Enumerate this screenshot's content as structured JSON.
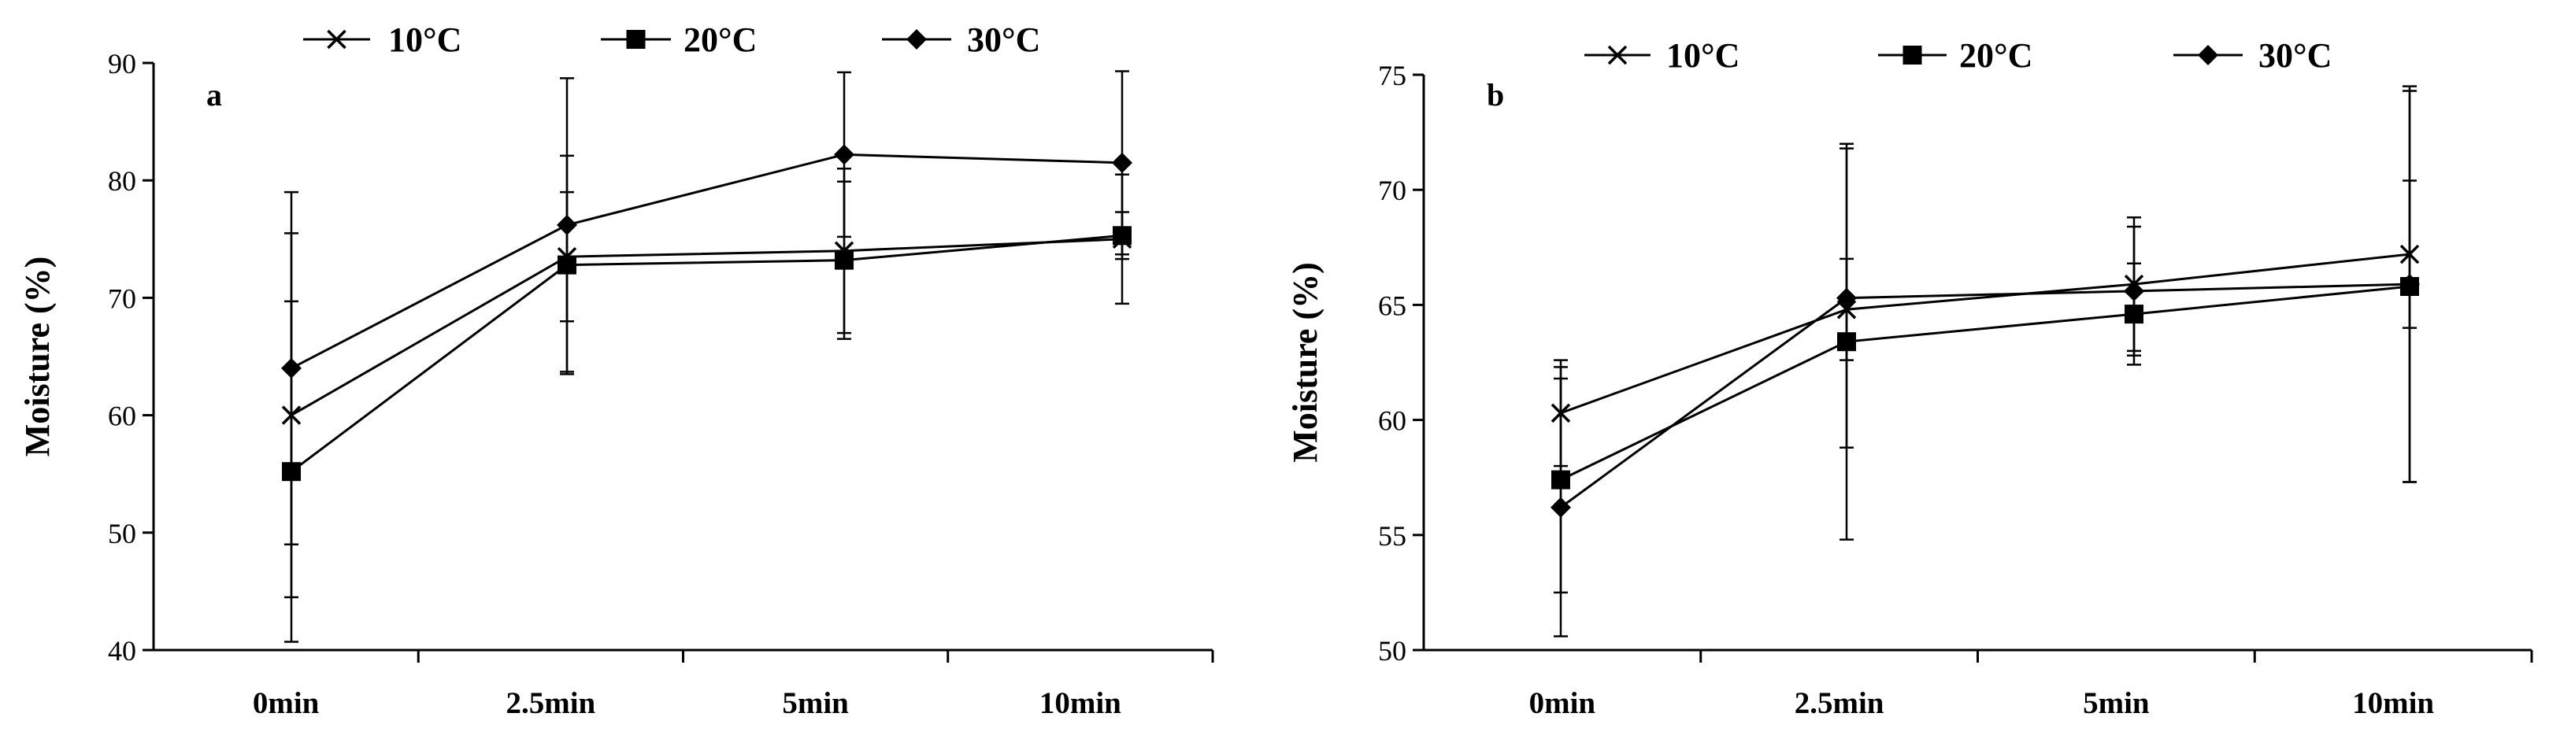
{
  "chart_data": [
    {
      "type": "line",
      "panel_label": "a",
      "ylabel": "Moisture (%)",
      "xlabel": "",
      "ylim": [
        40,
        90
      ],
      "yticks": [
        "40",
        "50",
        "60",
        "70",
        "80",
        "90"
      ],
      "categories": [
        "0min",
        "2.5min",
        "5min",
        "10min"
      ],
      "legend": [
        "10°C",
        "20°C",
        "30°C"
      ],
      "series": [
        {
          "name": "10°C",
          "marker": "x",
          "values": [
            60.0,
            73.5,
            74.0,
            75.0
          ],
          "errors": [
            15.5,
            5.5,
            7.0,
            5.5
          ]
        },
        {
          "name": "20°C",
          "marker": "square",
          "values": [
            55.2,
            72.8,
            73.2,
            75.3
          ],
          "errors": [
            14.5,
            9.3,
            6.7,
            2.0
          ]
        },
        {
          "name": "30°C",
          "marker": "diamond",
          "values": [
            64.0,
            76.2,
            82.2,
            81.5
          ],
          "errors": [
            15.0,
            12.5,
            7.0,
            7.8
          ]
        }
      ]
    },
    {
      "type": "line",
      "panel_label": "b",
      "ylabel": "Moisture (%)",
      "xlabel": "",
      "ylim": [
        50,
        75
      ],
      "yticks": [
        "50",
        "55",
        "60",
        "65",
        "70",
        "75"
      ],
      "categories": [
        "0min",
        "2.5min",
        "5min",
        "10min"
      ],
      "legend": [
        "10°C",
        "20°C",
        "30°C"
      ],
      "series": [
        {
          "name": "10°C",
          "marker": "x",
          "values": [
            60.3,
            64.8,
            65.9,
            67.2
          ],
          "errors": [
            2.3,
            2.2,
            2.9,
            3.2
          ]
        },
        {
          "name": "20°C",
          "marker": "square",
          "values": [
            57.4,
            63.4,
            64.6,
            65.8
          ],
          "errors": [
            4.9,
            8.6,
            2.2,
            8.5
          ]
        },
        {
          "name": "30°C",
          "marker": "diamond",
          "values": [
            56.2,
            65.3,
            65.6,
            65.9
          ],
          "errors": [
            5.6,
            6.5,
            2.8,
            8.6
          ]
        }
      ]
    }
  ]
}
